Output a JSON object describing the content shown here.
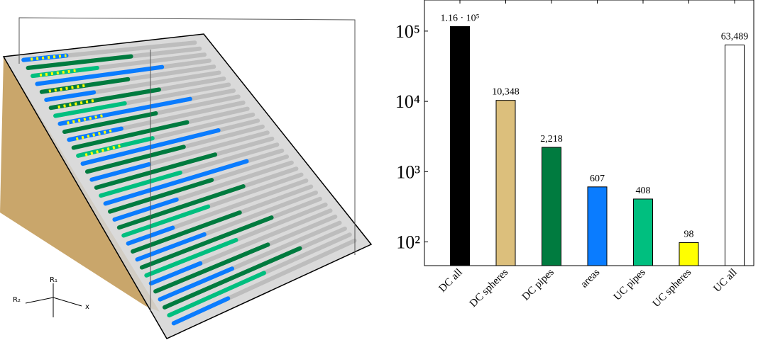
{
  "figure": {
    "axis_labels": [
      "R₁",
      "R₂",
      "x"
    ]
  },
  "chart_data": {
    "type": "bar",
    "categories": [
      "DC all",
      "DC spheres",
      "DC pipes",
      "areas",
      "UC pipes",
      "UC spheres",
      "UC all"
    ],
    "values": [
      116000,
      10348,
      2218,
      607,
      408,
      98,
      63489
    ],
    "value_labels": [
      "1.16 · 10⁵",
      "10,348",
      "2,218",
      "607",
      "408",
      "98",
      "63,489"
    ],
    "colors": [
      "#000000",
      "#dcbf7c",
      "#007b3f",
      "#0a7cff",
      "#00bf7f",
      "#ffff00",
      "#ffffff"
    ],
    "log_scale": true,
    "ylim": [
      46,
      277000
    ],
    "yticks": [
      {
        "value": 100,
        "label": "10²"
      },
      {
        "value": 1000,
        "label": "10³"
      },
      {
        "value": 10000,
        "label": "10⁴"
      },
      {
        "value": 100000,
        "label": "10⁵"
      }
    ]
  }
}
